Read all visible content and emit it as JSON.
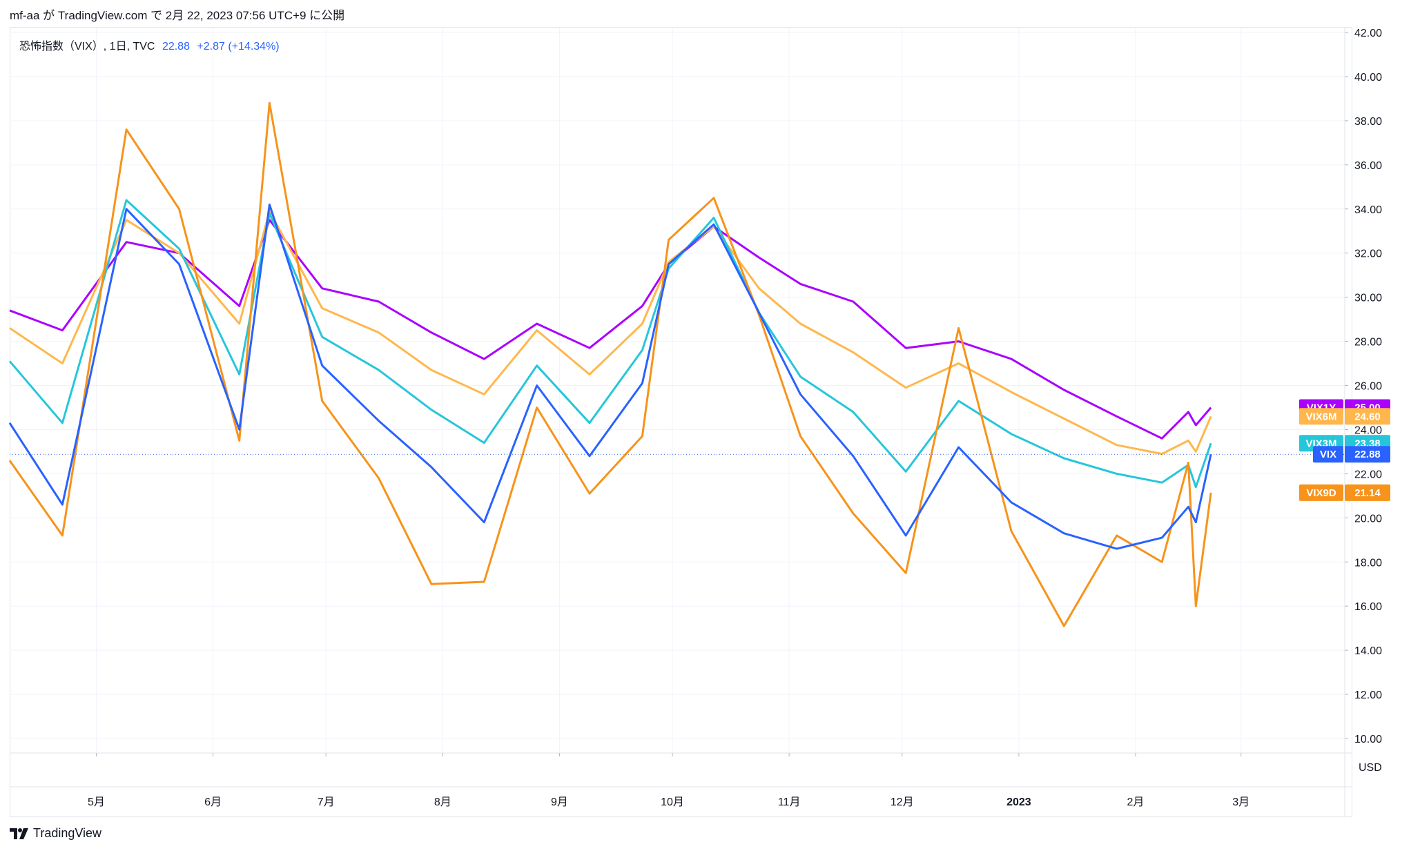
{
  "header": {
    "caption": "mf-aa が TradingView.com で 2月 22, 2023 07:56 UTC+9 に公開"
  },
  "legend": {
    "name": "恐怖指数（VIX）, 1日, TVC",
    "price": "22.88",
    "change": "+2.87 (+14.34%)"
  },
  "footer": {
    "brand": "TradingView"
  },
  "colors": {
    "VIX": "#2962ff",
    "VIX9D": "#f7931a",
    "VIX3M": "#26c6da",
    "VIX6M": "#ffb74d",
    "VIX1Y": "#aa00ff",
    "grid": "#f0f3fa",
    "border": "#e0e3eb"
  },
  "chart_data": {
    "type": "line",
    "currency": "USD",
    "y_axis_labels": [
      "42.00",
      "40.00",
      "38.00",
      "36.00",
      "34.00",
      "32.00",
      "30.00",
      "28.00",
      "26.00",
      "24.00",
      "22.00",
      "20.00",
      "18.00",
      "16.00",
      "14.00",
      "12.00",
      "10.00"
    ],
    "ylim": [
      10,
      42
    ],
    "x_axis_labels": [
      "5月",
      "6月",
      "7月",
      "8月",
      "9月",
      "10月",
      "11月",
      "12月",
      "2023",
      "2月",
      "3月"
    ],
    "xlim": [
      "2022-04-08",
      "2023-03-28"
    ],
    "grid": true,
    "legend_placement": "price-scale tags at right",
    "x": [
      "2022-04-08",
      "2022-04-22",
      "2022-05-09",
      "2022-05-23",
      "2022-06-08",
      "2022-06-16",
      "2022-06-30",
      "2022-07-15",
      "2022-07-29",
      "2022-08-12",
      "2022-08-26",
      "2022-09-09",
      "2022-09-23",
      "2022-09-30",
      "2022-10-12",
      "2022-10-24",
      "2022-11-04",
      "2022-11-18",
      "2022-12-02",
      "2022-12-16",
      "2022-12-30",
      "2023-01-13",
      "2023-01-27",
      "2023-02-08",
      "2023-02-15",
      "2023-02-17",
      "2023-02-21"
    ],
    "series": [
      {
        "name": "VIX1Y",
        "last": "25.00",
        "values": [
          29.4,
          28.5,
          32.5,
          32.0,
          29.6,
          33.5,
          30.4,
          29.8,
          28.4,
          27.2,
          28.8,
          27.7,
          29.6,
          31.5,
          33.2,
          31.8,
          30.6,
          29.8,
          27.7,
          28.0,
          27.2,
          25.8,
          24.6,
          23.6,
          24.8,
          24.2,
          25.0
        ]
      },
      {
        "name": "VIX6M",
        "last": "24.60",
        "values": [
          28.6,
          27.0,
          33.5,
          32.0,
          28.8,
          33.9,
          29.5,
          28.4,
          26.7,
          25.6,
          28.5,
          26.5,
          28.8,
          31.6,
          33.2,
          30.4,
          28.8,
          27.5,
          25.9,
          27.0,
          25.7,
          24.5,
          23.3,
          22.9,
          23.5,
          23.0,
          24.6
        ]
      },
      {
        "name": "VIX3M",
        "last": "23.38",
        "values": [
          27.1,
          24.3,
          34.4,
          32.2,
          26.5,
          33.8,
          28.2,
          26.7,
          24.9,
          23.4,
          26.9,
          24.3,
          27.6,
          31.3,
          33.6,
          29.3,
          26.4,
          24.8,
          22.1,
          25.3,
          23.8,
          22.7,
          22.0,
          21.6,
          22.4,
          21.4,
          23.38
        ]
      },
      {
        "name": "VIX",
        "last": "22.88",
        "values": [
          24.3,
          20.6,
          34.0,
          31.5,
          24.0,
          34.2,
          26.9,
          24.4,
          22.3,
          19.8,
          26.0,
          22.8,
          26.1,
          31.5,
          33.3,
          29.3,
          25.6,
          22.8,
          19.2,
          23.2,
          20.7,
          19.3,
          18.6,
          19.1,
          20.5,
          19.8,
          22.88
        ]
      },
      {
        "name": "VIX9D",
        "last": "21.14",
        "values": [
          22.6,
          19.2,
          37.6,
          34.0,
          23.5,
          38.8,
          25.3,
          21.8,
          17.0,
          17.1,
          25.0,
          21.1,
          23.7,
          32.6,
          34.5,
          29.2,
          23.7,
          20.2,
          17.5,
          28.6,
          19.4,
          15.1,
          19.2,
          18.0,
          22.5,
          16.0,
          21.14
        ]
      }
    ]
  }
}
